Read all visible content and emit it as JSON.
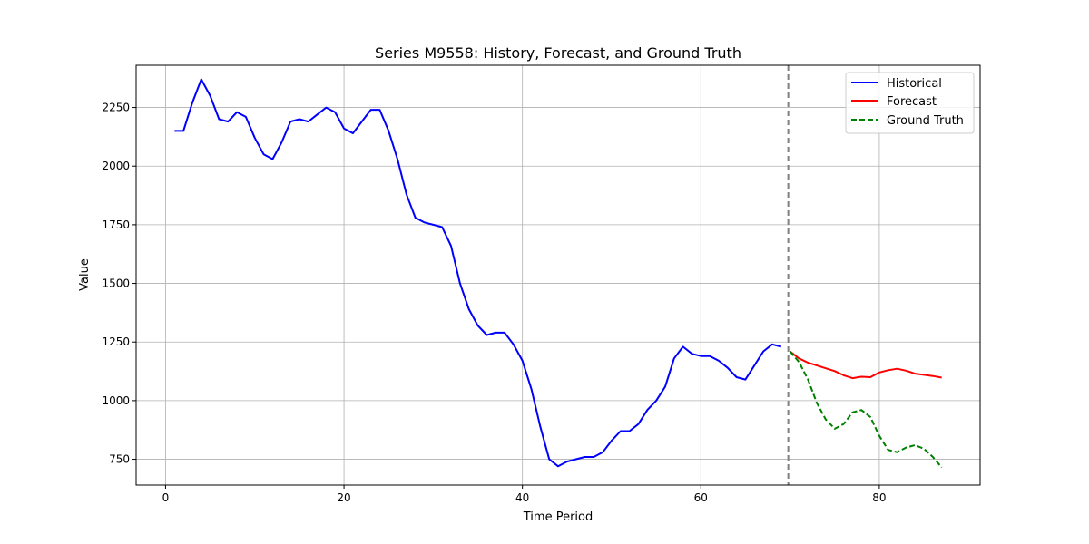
{
  "chart_data": {
    "type": "line",
    "title": "Series M9558: History, Forecast, and Ground Truth",
    "xlabel": "Time Period",
    "ylabel": "Value",
    "xlim": [
      -3.3,
      91.3
    ],
    "ylim": [
      640,
      2430
    ],
    "xticks": [
      0,
      20,
      40,
      60,
      80
    ],
    "yticks": [
      750,
      1000,
      1250,
      1500,
      1750,
      2000,
      2250
    ],
    "grid": true,
    "legend_position": "top-right",
    "forecast_start_marker": 69.8,
    "series": [
      {
        "name": "Historical",
        "color": "#0000ff",
        "style": "solid",
        "x": [
          1,
          2,
          3,
          4,
          5,
          6,
          7,
          8,
          9,
          10,
          11,
          12,
          13,
          14,
          15,
          16,
          17,
          18,
          19,
          20,
          21,
          22,
          23,
          24,
          25,
          26,
          27,
          28,
          29,
          30,
          31,
          32,
          33,
          34,
          35,
          36,
          37,
          38,
          39,
          40,
          41,
          42,
          43,
          44,
          45,
          46,
          47,
          48,
          49,
          50,
          51,
          52,
          53,
          54,
          55,
          56,
          57,
          58,
          59,
          60,
          61,
          62,
          63,
          64,
          65,
          66,
          67,
          68,
          69
        ],
        "values": [
          2150,
          2150,
          2270,
          2370,
          2300,
          2200,
          2190,
          2230,
          2210,
          2120,
          2050,
          2030,
          2100,
          2190,
          2200,
          2190,
          2220,
          2250,
          2230,
          2160,
          2140,
          2190,
          2240,
          2240,
          2150,
          2030,
          1880,
          1780,
          1760,
          1750,
          1740,
          1660,
          1500,
          1390,
          1320,
          1280,
          1290,
          1290,
          1240,
          1170,
          1050,
          890,
          750,
          720,
          740,
          750,
          760,
          760,
          780,
          830,
          870,
          870,
          900,
          960,
          1000,
          1060,
          1180,
          1230,
          1200,
          1190,
          1190,
          1170,
          1140,
          1100,
          1090,
          1150,
          1210,
          1240,
          1230
        ]
      },
      {
        "name": "Forecast",
        "color": "#ff0000",
        "style": "solid",
        "x": [
          70,
          71,
          72,
          73,
          74,
          75,
          76,
          77,
          78,
          79,
          80,
          81,
          82,
          83,
          84,
          85,
          86,
          87
        ],
        "values": [
          1210,
          1180,
          1162,
          1150,
          1138,
          1126,
          1108,
          1096,
          1102,
          1100,
          1120,
          1130,
          1136,
          1128,
          1115,
          1110,
          1105,
          1098
        ]
      },
      {
        "name": "Ground Truth",
        "color": "#008000",
        "style": "dashed",
        "x": [
          70,
          71,
          72,
          73,
          74,
          75,
          76,
          77,
          78,
          79,
          80,
          81,
          82,
          83,
          84,
          85,
          86,
          87
        ],
        "values": [
          1210,
          1165,
          1090,
          990,
          920,
          880,
          900,
          950,
          960,
          930,
          850,
          790,
          780,
          800,
          810,
          795,
          760,
          715
        ]
      }
    ]
  }
}
